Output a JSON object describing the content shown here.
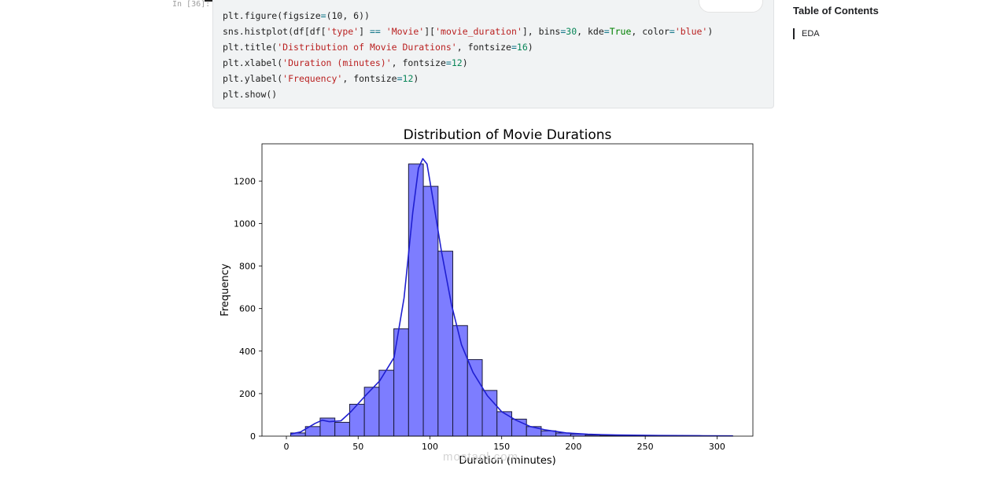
{
  "cell": {
    "prompt": "In [36]:",
    "code_lines": [
      [
        [
          "plt.figure(figsize",
          "t"
        ],
        [
          "=",
          "o"
        ],
        [
          "(10, 6))",
          "t"
        ]
      ],
      [
        [
          "sns.histplot(df[df[",
          "t"
        ],
        [
          "'type'",
          "s"
        ],
        [
          "] ",
          "t"
        ],
        [
          "==",
          "o"
        ],
        [
          " ",
          "t"
        ],
        [
          "'Movie'",
          "s"
        ],
        [
          "][",
          "t"
        ],
        [
          "'movie_duration'",
          "s"
        ],
        [
          "], bins",
          "t"
        ],
        [
          "=",
          "o"
        ],
        [
          "30",
          "n"
        ],
        [
          ", kde",
          "t"
        ],
        [
          "=",
          "o"
        ],
        [
          "True",
          "k"
        ],
        [
          ", color",
          "t"
        ],
        [
          "=",
          "o"
        ],
        [
          "'blue'",
          "s"
        ],
        [
          ")",
          "t"
        ]
      ],
      [
        [
          "plt.title(",
          "t"
        ],
        [
          "'Distribution of Movie Durations'",
          "s"
        ],
        [
          ", fontsize",
          "t"
        ],
        [
          "=",
          "o"
        ],
        [
          "16",
          "n"
        ],
        [
          ")",
          "t"
        ]
      ],
      [
        [
          "plt.xlabel(",
          "t"
        ],
        [
          "'Duration (minutes)'",
          "s"
        ],
        [
          ", fontsize",
          "t"
        ],
        [
          "=",
          "o"
        ],
        [
          "12",
          "n"
        ],
        [
          ")",
          "t"
        ]
      ],
      [
        [
          "plt.ylabel(",
          "t"
        ],
        [
          "'Frequency'",
          "s"
        ],
        [
          ", fontsize",
          "t"
        ],
        [
          "=",
          "o"
        ],
        [
          "12",
          "n"
        ],
        [
          ")",
          "t"
        ]
      ],
      [
        [
          "plt.show()",
          "t"
        ]
      ]
    ]
  },
  "toc": {
    "title": "Table of Contents",
    "items": [
      "EDA"
    ]
  },
  "watermark": {
    "text": "mostaql.com"
  },
  "colors": {
    "bar_fill": "#7d7dff",
    "bar_edge": "#1a1a3a",
    "kde_line": "#1f1fd1"
  },
  "chart_data": {
    "type": "bar",
    "title": "Distribution of Movie Durations",
    "xlabel": "Duration (minutes)",
    "ylabel": "Frequency",
    "xlim": [
      -17,
      325
    ],
    "ylim": [
      0,
      1375
    ],
    "xticks": [
      0,
      50,
      100,
      150,
      200,
      250,
      300
    ],
    "yticks": [
      0,
      200,
      400,
      600,
      800,
      1000,
      1200
    ],
    "bin_edges": [
      3,
      13.27,
      23.53,
      33.8,
      44.07,
      54.33,
      64.6,
      74.87,
      85.13,
      95.4,
      105.67,
      115.93,
      126.2,
      136.47,
      146.73,
      157,
      167.27,
      177.53,
      187.8,
      198.07,
      208.33,
      218.6,
      228.87,
      239.13,
      249.4,
      259.67,
      269.93,
      280.2,
      290.47,
      300.73,
      311
    ],
    "values": [
      15,
      45,
      85,
      65,
      150,
      230,
      310,
      505,
      1280,
      1175,
      870,
      520,
      360,
      215,
      115,
      80,
      45,
      25,
      15,
      10,
      5,
      3,
      2,
      3,
      2,
      1,
      1,
      1,
      1,
      1
    ],
    "kde": {
      "x": [
        3,
        10,
        20,
        25,
        30,
        38,
        45,
        55,
        65,
        75,
        82,
        88,
        92,
        95,
        98,
        102,
        108,
        115,
        122,
        130,
        140,
        150,
        160,
        170,
        180,
        195,
        210,
        230,
        260,
        290,
        311
      ],
      "y": [
        10,
        20,
        60,
        75,
        68,
        72,
        115,
        190,
        260,
        370,
        650,
        1050,
        1260,
        1305,
        1280,
        1120,
        870,
        620,
        430,
        300,
        190,
        115,
        75,
        45,
        30,
        15,
        9,
        5,
        3,
        2,
        1
      ]
    },
    "grid": false,
    "legend": "none"
  }
}
